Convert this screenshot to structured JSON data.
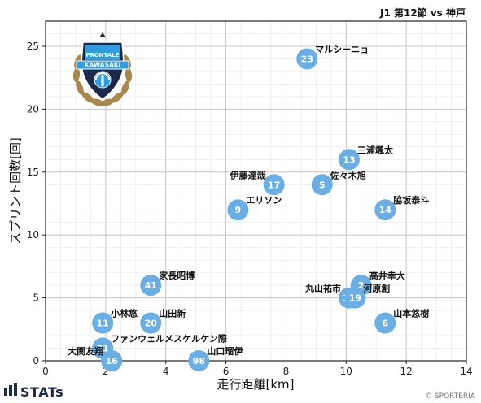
{
  "header": {
    "title": "J1 第12節 vs 神戸"
  },
  "footer": {
    "brand": "STATs",
    "copyright": "© SPORTERIA"
  },
  "logo": {
    "top_text": "FRONTALE",
    "band_text": "KAWASAKI",
    "icon": "kawasaki-frontale-crest"
  },
  "colors": {
    "marker": "#6aaee4",
    "grid": "#c8c8c8",
    "brand": "#1f2a44"
  },
  "chart_data": {
    "type": "scatter",
    "title": "J1 第12節 vs 神戸",
    "xlabel": "走行距離[km]",
    "ylabel": "スプリント回数[回]",
    "xlim": [
      0,
      14
    ],
    "ylim": [
      0,
      27
    ],
    "x_ticks": [
      0,
      2,
      4,
      6,
      8,
      10,
      12,
      14
    ],
    "y_ticks": [
      0,
      5,
      10,
      15,
      20,
      25
    ],
    "grid": true,
    "points": [
      {
        "num": "23",
        "name": "マルシーニョ",
        "x": 8.7,
        "y": 24
      },
      {
        "num": "13",
        "name": "三浦颯太",
        "x": 10.1,
        "y": 16
      },
      {
        "num": "17",
        "name": "伊藤達哉",
        "x": 7.6,
        "y": 14
      },
      {
        "num": "5",
        "name": "佐々木旭",
        "x": 9.2,
        "y": 14
      },
      {
        "num": "14",
        "name": "脇坂泰斗",
        "x": 11.3,
        "y": 12
      },
      {
        "num": "9",
        "name": "エリソン",
        "x": 6.4,
        "y": 12
      },
      {
        "num": "41",
        "name": "家長昭博",
        "x": 3.5,
        "y": 6
      },
      {
        "num": "2",
        "name": "高井幸大",
        "x": 10.5,
        "y": 6
      },
      {
        "num": "35",
        "name": "丸山祐市",
        "x": 10.1,
        "y": 5
      },
      {
        "num": "19",
        "name": "河原創",
        "x": 10.3,
        "y": 5
      },
      {
        "num": "11",
        "name": "小林悠",
        "x": 1.9,
        "y": 3
      },
      {
        "num": "20",
        "name": "山田新",
        "x": 3.5,
        "y": 3
      },
      {
        "num": "6",
        "name": "山本悠樹",
        "x": 11.3,
        "y": 3
      },
      {
        "num": "31",
        "name": "ファンウェルメスケルケン際",
        "x": 1.9,
        "y": 1
      },
      {
        "num": "16",
        "name": "大関友翔",
        "x": 2.2,
        "y": 0
      },
      {
        "num": "98",
        "name": "山口瑠伊",
        "x": 5.1,
        "y": 0
      }
    ]
  }
}
